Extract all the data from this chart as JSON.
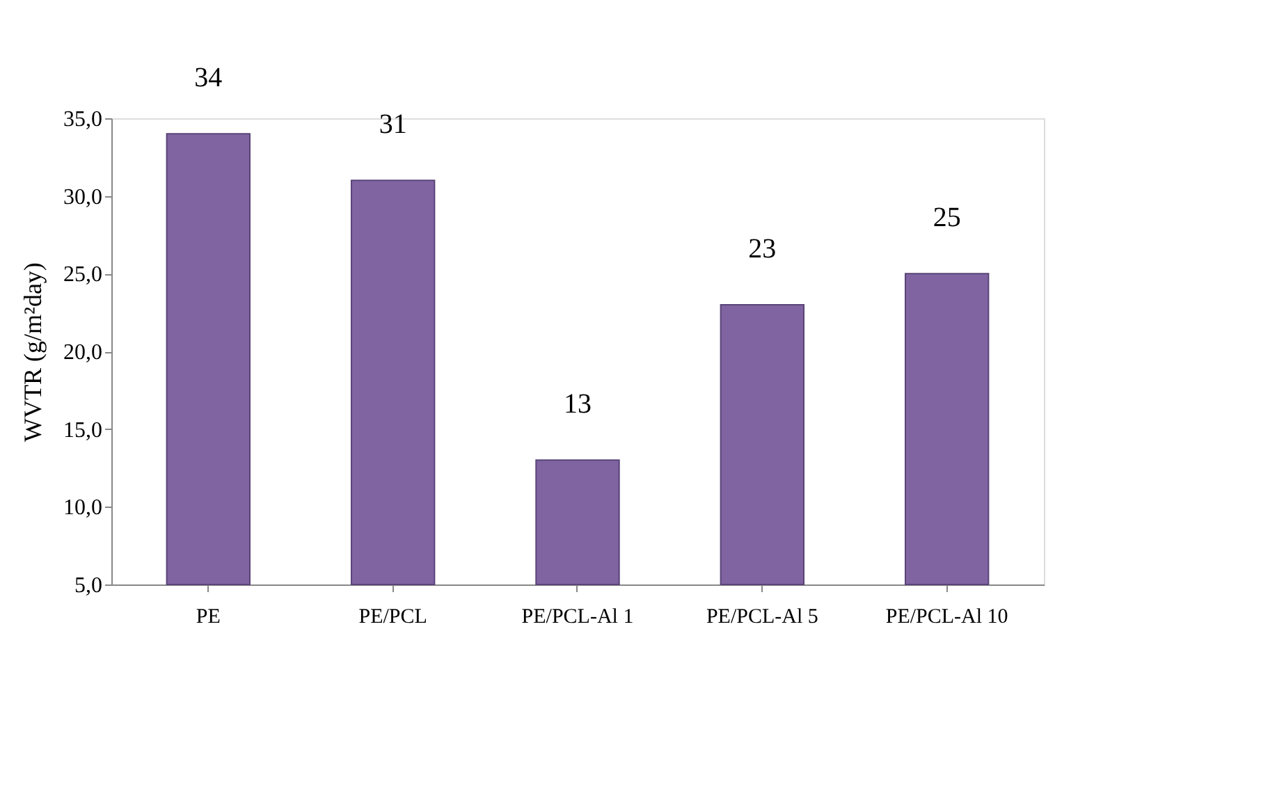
{
  "chart_data": {
    "type": "bar",
    "ylabel": "WVTR (g/m²day)",
    "categories": [
      "PE",
      "PE/PCL",
      "PE/PCL-Al 1",
      "PE/PCL-Al 5",
      "PE/PCL-Al 10"
    ],
    "values": [
      34,
      31,
      13,
      23,
      25
    ],
    "color": "#8064a2",
    "data_labels": true,
    "ylim": [
      5,
      35
    ],
    "yticks": [
      {
        "value": 5,
        "label": "5,0"
      },
      {
        "value": 10,
        "label": "10,0"
      },
      {
        "value": 15,
        "label": "15,0"
      },
      {
        "value": 20,
        "label": "20,0"
      },
      {
        "value": 25,
        "label": "25,0"
      },
      {
        "value": 30,
        "label": "30,0"
      },
      {
        "value": 35,
        "label": "35,0"
      }
    ],
    "grid": false
  }
}
